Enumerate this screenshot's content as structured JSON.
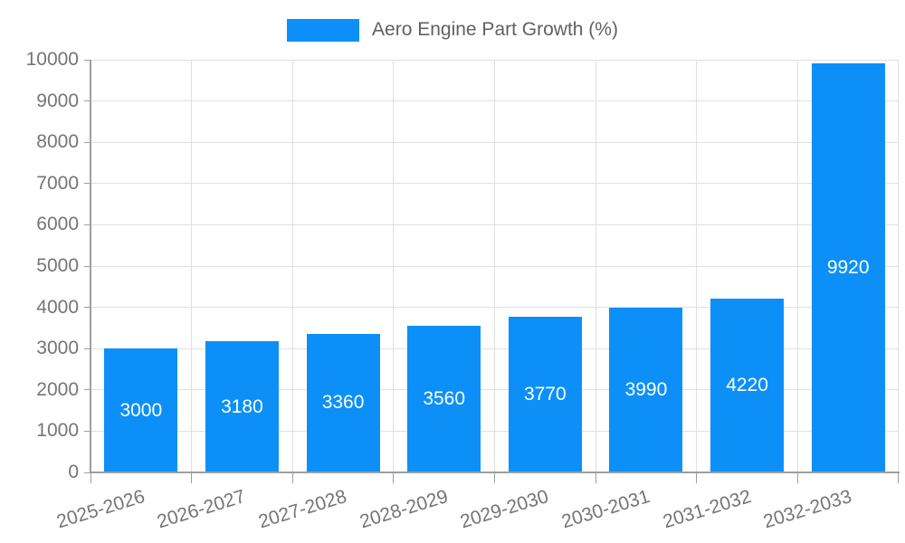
{
  "legend": {
    "label": "Aero Engine Part Growth (%)"
  },
  "chart_data": {
    "type": "bar",
    "title": "Aero Engine Part Growth (%)",
    "categories": [
      "2025-2026",
      "2026-2027",
      "2027-2028",
      "2028-2029",
      "2029-2030",
      "2030-2031",
      "2031-2032",
      "2032-2033"
    ],
    "values": [
      3000,
      3180,
      3360,
      3560,
      3770,
      3990,
      4220,
      9920
    ],
    "value_labels": [
      "3000",
      "3180",
      "3360",
      "3560",
      "3770",
      "3990",
      "4220",
      "9920"
    ],
    "xlabel": "",
    "ylabel": "",
    "ylim": [
      0,
      10000
    ],
    "yticks": [
      0,
      1000,
      2000,
      3000,
      4000,
      5000,
      6000,
      7000,
      8000,
      9000,
      10000
    ],
    "grid": true,
    "legend_position": "top-center",
    "xtick_label_rotation_deg": -17,
    "bar_width_fraction": 0.725,
    "colors": {
      "bar": "#0c90f8",
      "value_label": "#ffffff",
      "grid_line": "#e0e0e0",
      "axis_line": "#9e9e9e",
      "tick_label": "#757575",
      "legend_text": "#616161",
      "background": "#ffffff"
    }
  }
}
